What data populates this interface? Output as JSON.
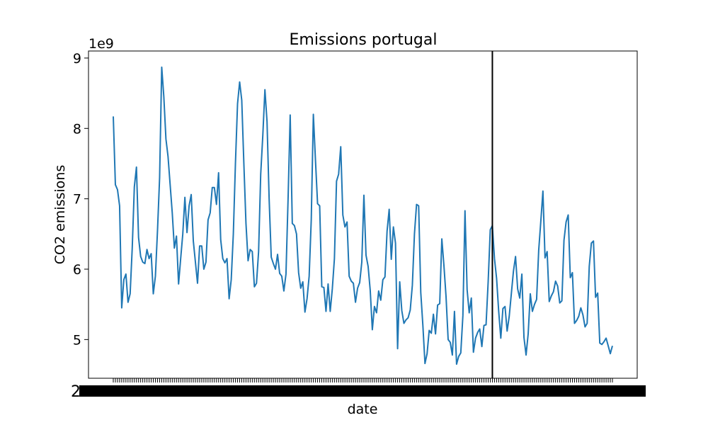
{
  "chart_data": {
    "type": "line",
    "title": "Emissions portugal",
    "xlabel": "date",
    "ylabel": "CO2 emissions",
    "y_offset_label": "1e9",
    "ylim": [
      4.45,
      9.1
    ],
    "yticks": [
      5,
      6,
      7,
      8,
      9
    ],
    "ytick_labels": [
      "5",
      "6",
      "7",
      "8",
      "9"
    ],
    "grid": false,
    "legend": "none",
    "colors": {
      "line": "#1f77b4",
      "vline": "#000000"
    },
    "vline_at_index": 180,
    "series": [
      {
        "values": [
          8.17,
          7.2,
          7.13,
          6.9,
          5.45,
          5.85,
          5.93,
          5.53,
          5.65,
          6.3,
          7.17,
          7.45,
          6.45,
          6.18,
          6.1,
          6.08,
          6.28,
          6.15,
          6.22,
          5.65,
          5.9,
          6.55,
          7.3,
          8.87,
          8.45,
          7.85,
          7.6,
          7.2,
          6.8,
          6.3,
          6.47,
          5.79,
          6.15,
          6.5,
          7.02,
          6.52,
          6.9,
          7.06,
          6.4,
          6.1,
          5.8,
          6.33,
          6.33,
          6.0,
          6.1,
          6.7,
          6.8,
          7.16,
          7.16,
          6.92,
          7.37,
          6.42,
          6.15,
          6.09,
          6.15,
          5.58,
          5.85,
          6.5,
          7.5,
          8.35,
          8.66,
          8.4,
          7.5,
          6.65,
          6.12,
          6.28,
          6.25,
          5.75,
          5.8,
          6.25,
          7.35,
          7.9,
          8.55,
          8.1,
          7.0,
          6.17,
          6.08,
          6.0,
          6.21,
          5.94,
          5.9,
          5.69,
          5.93,
          7.0,
          8.19,
          6.65,
          6.62,
          6.5,
          5.95,
          5.73,
          5.82,
          5.39,
          5.58,
          5.9,
          6.7,
          8.2,
          7.55,
          6.93,
          6.9,
          5.75,
          5.74,
          5.4,
          5.79,
          5.4,
          5.72,
          6.15,
          7.25,
          7.35,
          7.74,
          6.77,
          6.6,
          6.67,
          5.9,
          5.83,
          5.8,
          5.53,
          5.73,
          5.81,
          6.1,
          7.05,
          6.2,
          6.04,
          5.7,
          5.14,
          5.47,
          5.38,
          5.69,
          5.56,
          5.85,
          5.89,
          6.54,
          6.85,
          6.14,
          6.6,
          6.37,
          4.87,
          5.82,
          5.41,
          5.23,
          5.28,
          5.31,
          5.42,
          5.77,
          6.5,
          6.92,
          6.9,
          5.67,
          5.2,
          4.66,
          4.8,
          5.13,
          5.09,
          5.36,
          5.08,
          5.49,
          5.51,
          6.43,
          6.05,
          5.61,
          5.0,
          4.96,
          4.78,
          5.4,
          4.65,
          4.76,
          4.81,
          5.34,
          6.83,
          5.71,
          5.38,
          5.59,
          4.82,
          5.02,
          5.1,
          5.15,
          4.9,
          5.2,
          5.21,
          5.82,
          6.56,
          6.62,
          6.15,
          5.87,
          5.4,
          5.02,
          5.44,
          5.47,
          5.12,
          5.33,
          5.65,
          5.97,
          6.18,
          5.72,
          5.59,
          5.93,
          5.03,
          4.78,
          5.08,
          5.65,
          5.4,
          5.5,
          5.57,
          6.27,
          6.68,
          7.11,
          6.16,
          6.25,
          5.54,
          5.62,
          5.68,
          5.83,
          5.76,
          5.52,
          5.55,
          6.41,
          6.67,
          6.77,
          5.88,
          5.95,
          5.23,
          5.27,
          5.33,
          5.45,
          5.35,
          5.18,
          5.23,
          6.04,
          6.37,
          6.4,
          5.6,
          5.66,
          4.95,
          4.93,
          4.97,
          5.02,
          4.91,
          4.8,
          4.91
        ]
      }
    ]
  }
}
